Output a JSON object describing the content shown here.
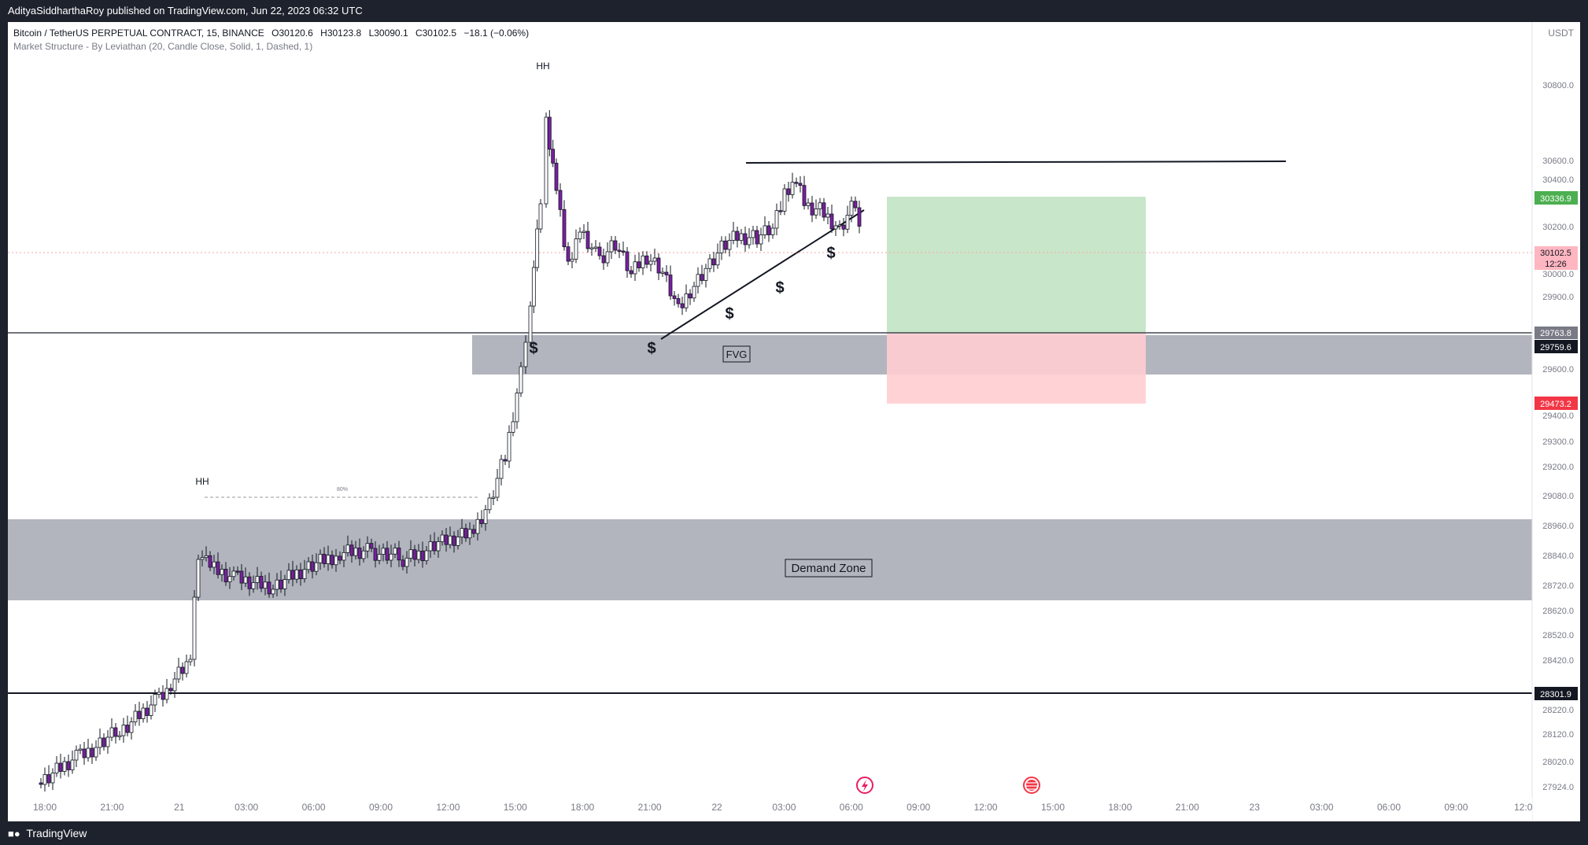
{
  "header": {
    "published_by": "AdityaSiddharthaRoy published on TradingView.com, Jun 22, 2023 06:32 UTC"
  },
  "legend": {
    "symbol": "Bitcoin / TetherUS PERPETUAL CONTRACT, 15, BINANCE",
    "open": "O30120.6",
    "high": "H30123.8",
    "low": "L30090.1",
    "close": "C30102.5",
    "change": "−18.1 (−0.06%)",
    "indicator": "Market Structure - By Leviathan (20, Candle Close, Solid, 1, Dashed, 1)"
  },
  "price_axis": {
    "currency": "USDT",
    "labels": [
      "30800.0",
      "30600.0",
      "30400.0",
      "30200.0",
      "30000.0",
      "29900.0",
      "29600.0",
      "29400.0",
      "29300.0",
      "29200.0",
      "29080.0",
      "28960.0",
      "28840.0",
      "28720.0",
      "28620.0",
      "28520.0",
      "28420.0",
      "28220.0",
      "28120.0",
      "28020.0",
      "27924.0"
    ],
    "badges": {
      "target": "30336.9",
      "current_price": "30102.5",
      "countdown": "12:26",
      "level_upper": "29763.8",
      "level_fvg": "29759.6",
      "stop": "29473.2",
      "support": "28301.9"
    }
  },
  "time_axis": [
    "18:00",
    "21:00",
    "21",
    "03:00",
    "06:00",
    "09:00",
    "12:00",
    "15:00",
    "18:00",
    "21:00",
    "22",
    "03:00",
    "06:00",
    "09:00",
    "12:00",
    "15:00",
    "18:00",
    "21:00",
    "23",
    "03:00",
    "06:00",
    "09:00",
    "12:0"
  ],
  "annotations": {
    "hh_top": "HH",
    "hh_left": "HH",
    "pct_label": "80%",
    "fvg": "FVG",
    "demand_zone": "Demand Zone",
    "liquidity_symbol": "$"
  },
  "colors": {
    "candle": "#7b1fa2",
    "zone": "#b2b5be",
    "profit": "#c8e6c9",
    "loss": "#ffcdd2",
    "badge_green": "#4caf50",
    "badge_red": "#f23645",
    "badge_pink": "#ffb6c1"
  },
  "footer": {
    "brand": "TradingView"
  }
}
